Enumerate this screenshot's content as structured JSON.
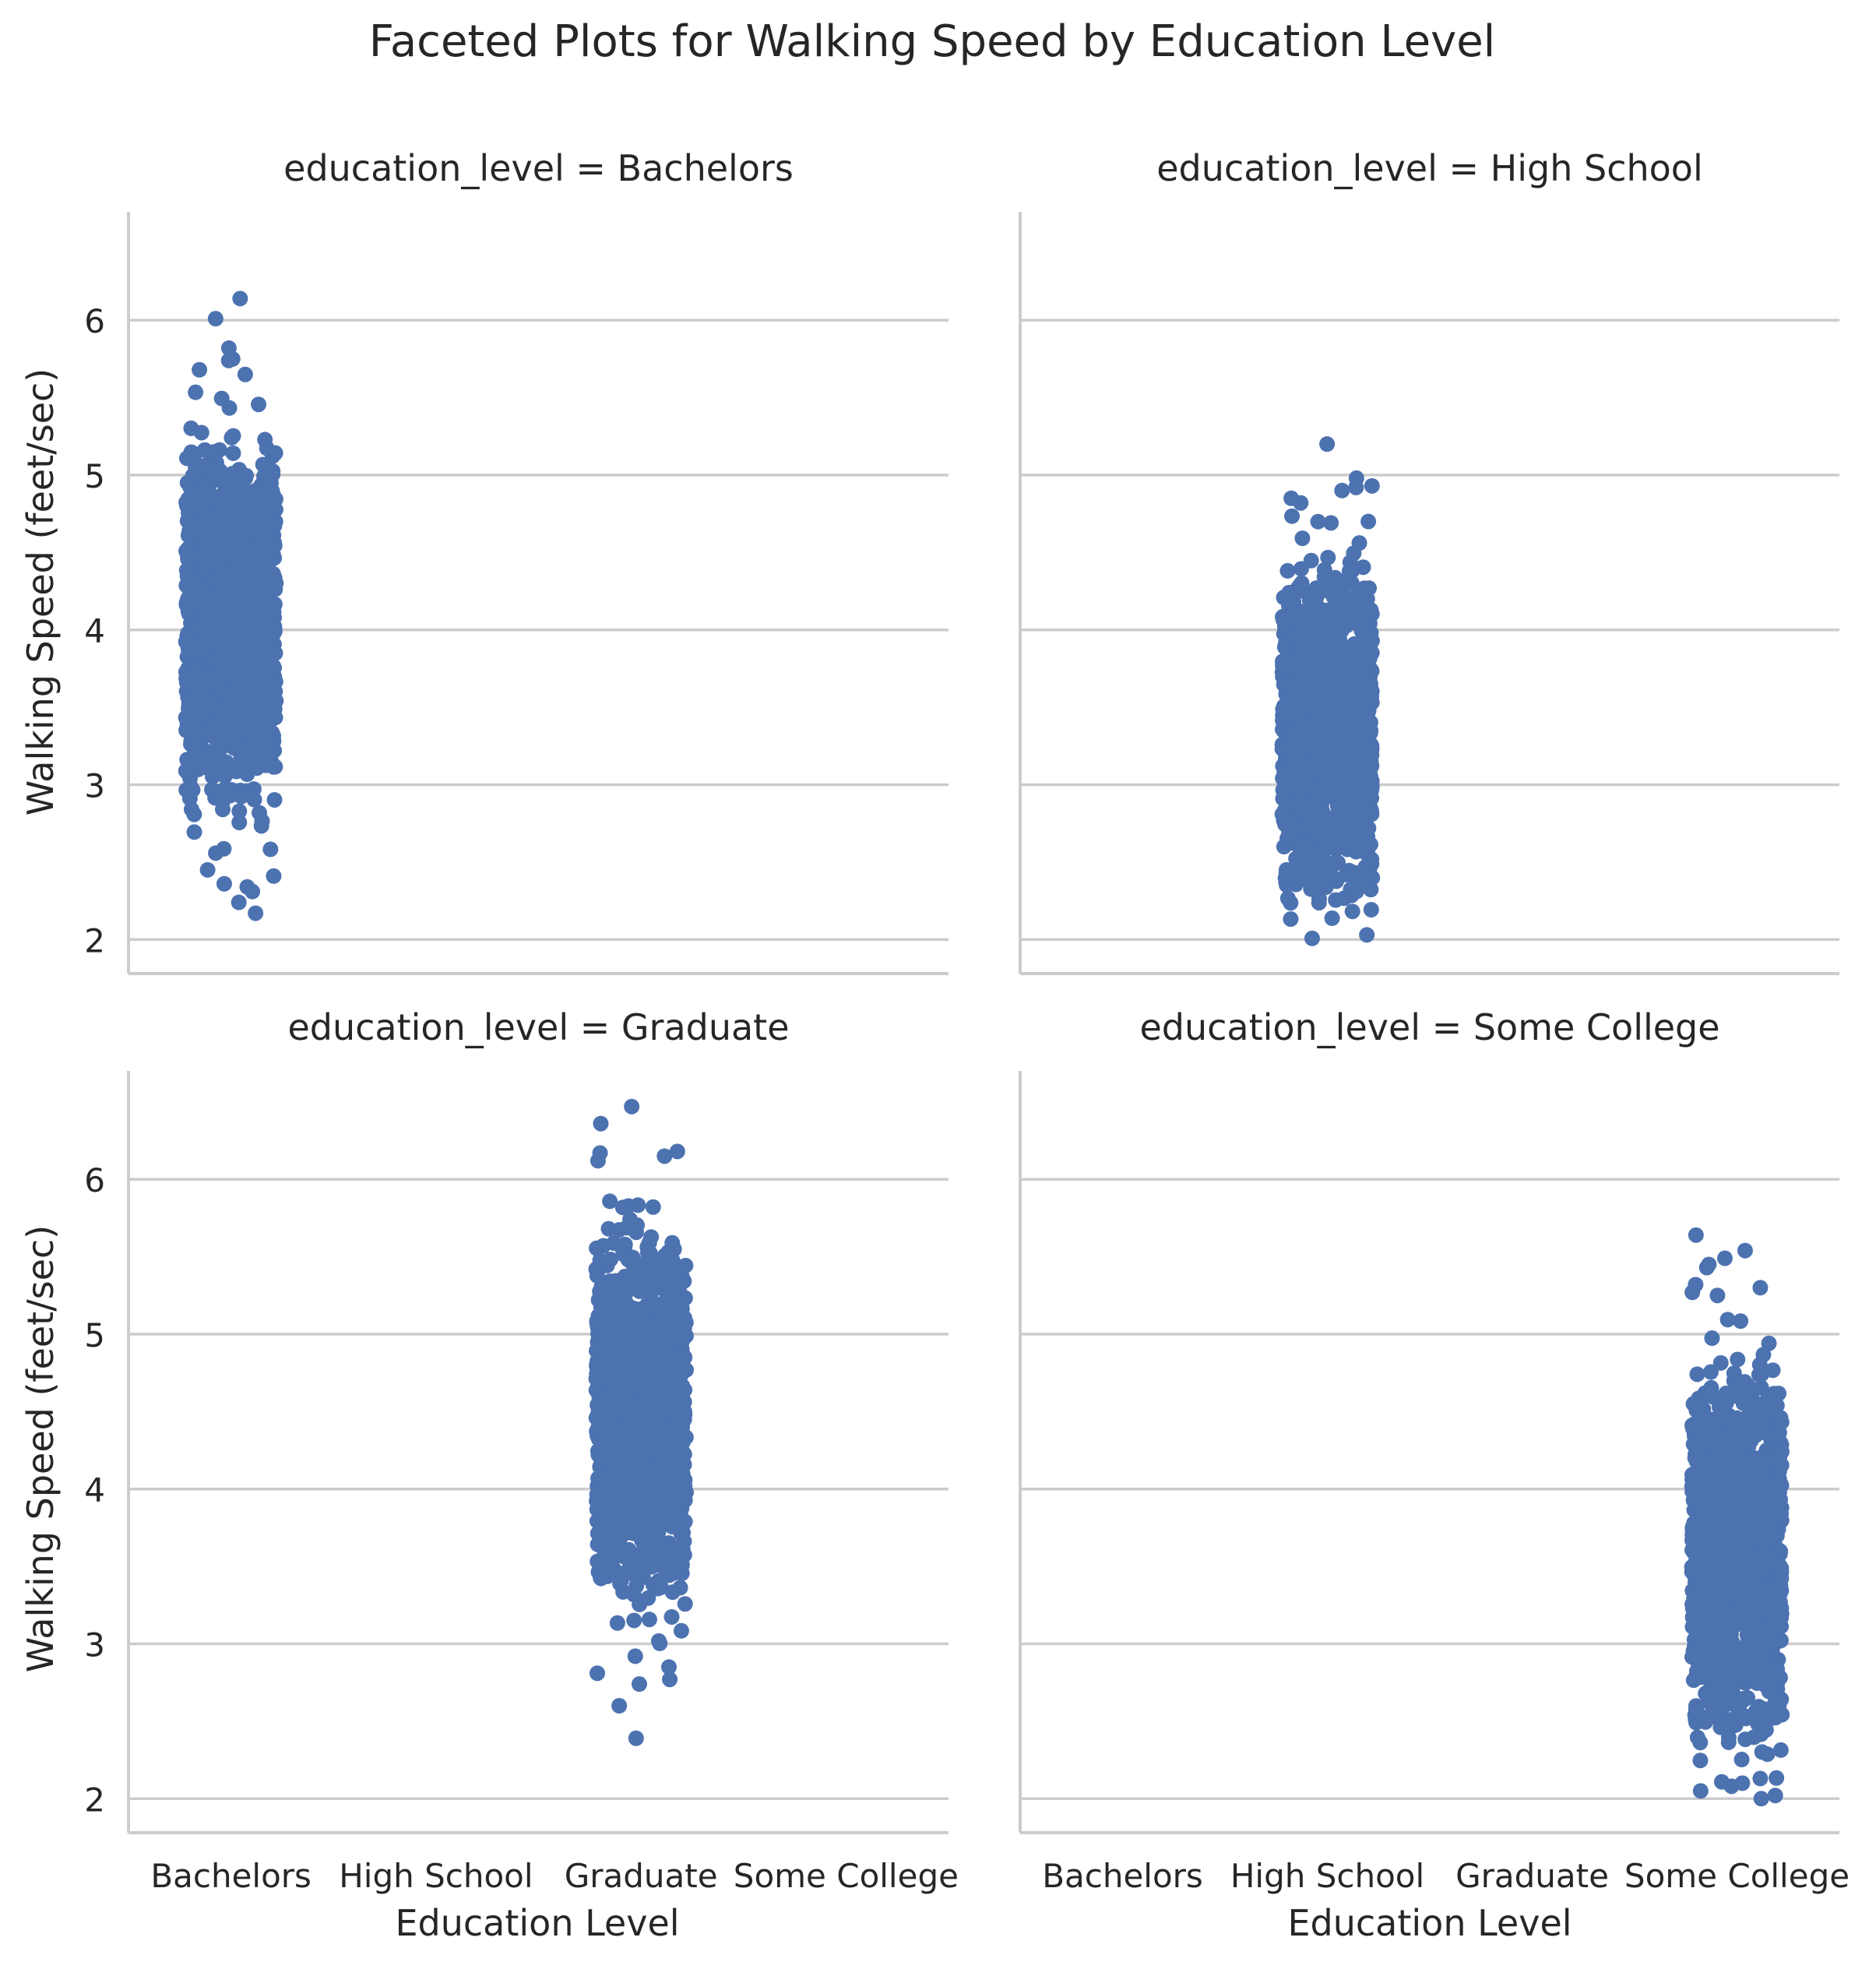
{
  "chart_data": {
    "type": "scatter",
    "title": "Faceted Plots for Walking Speed by Education Level",
    "xlabel": "Education Level",
    "ylabel": "Walking Speed (feet/sec)",
    "categories": [
      "Bachelors",
      "High School",
      "Graduate",
      "Some College"
    ],
    "yticks": [
      2,
      3,
      4,
      5,
      6
    ],
    "ylim": [
      1.78,
      6.7
    ],
    "grid": "horizontal",
    "marker_color": "#4c72b0",
    "facets": [
      {
        "title": "education_level = Bachelors",
        "category": "Bachelors",
        "summary": {
          "min": 2.17,
          "max": 6.14,
          "dense_low": 2.55,
          "dense_high": 5.55
        },
        "outliers": [
          6.14,
          6.01,
          5.82,
          5.74,
          5.75,
          5.68,
          5.65,
          2.45,
          2.41,
          2.36,
          2.34,
          2.31,
          2.24,
          2.17
        ]
      },
      {
        "title": "education_level = High School",
        "category": "High School",
        "summary": {
          "min": 2.0,
          "max": 5.2,
          "dense_low": 2.0,
          "dense_high": 4.75
        },
        "outliers": [
          5.2,
          4.98,
          4.93,
          4.92,
          4.9,
          4.85,
          4.82,
          4.7
        ]
      },
      {
        "title": "education_level = Graduate",
        "category": "Graduate",
        "summary": {
          "min": 2.39,
          "max": 6.47,
          "dense_low": 2.95,
          "dense_high": 6.05
        },
        "outliers": [
          6.47,
          6.36,
          6.18,
          6.17,
          6.15,
          6.12,
          2.92,
          2.85,
          2.81,
          2.77,
          2.74,
          2.6,
          2.39
        ]
      },
      {
        "title": "education_level = Some College",
        "category": "Some College",
        "summary": {
          "min": 2.0,
          "max": 5.64,
          "dense_low": 2.1,
          "dense_high": 5.15
        },
        "outliers": [
          5.64,
          5.54,
          5.49,
          5.43,
          5.45,
          5.32,
          5.3,
          5.27,
          5.25,
          2.13,
          2.1,
          2.08,
          2.05,
          2.02,
          2.0
        ]
      }
    ]
  }
}
